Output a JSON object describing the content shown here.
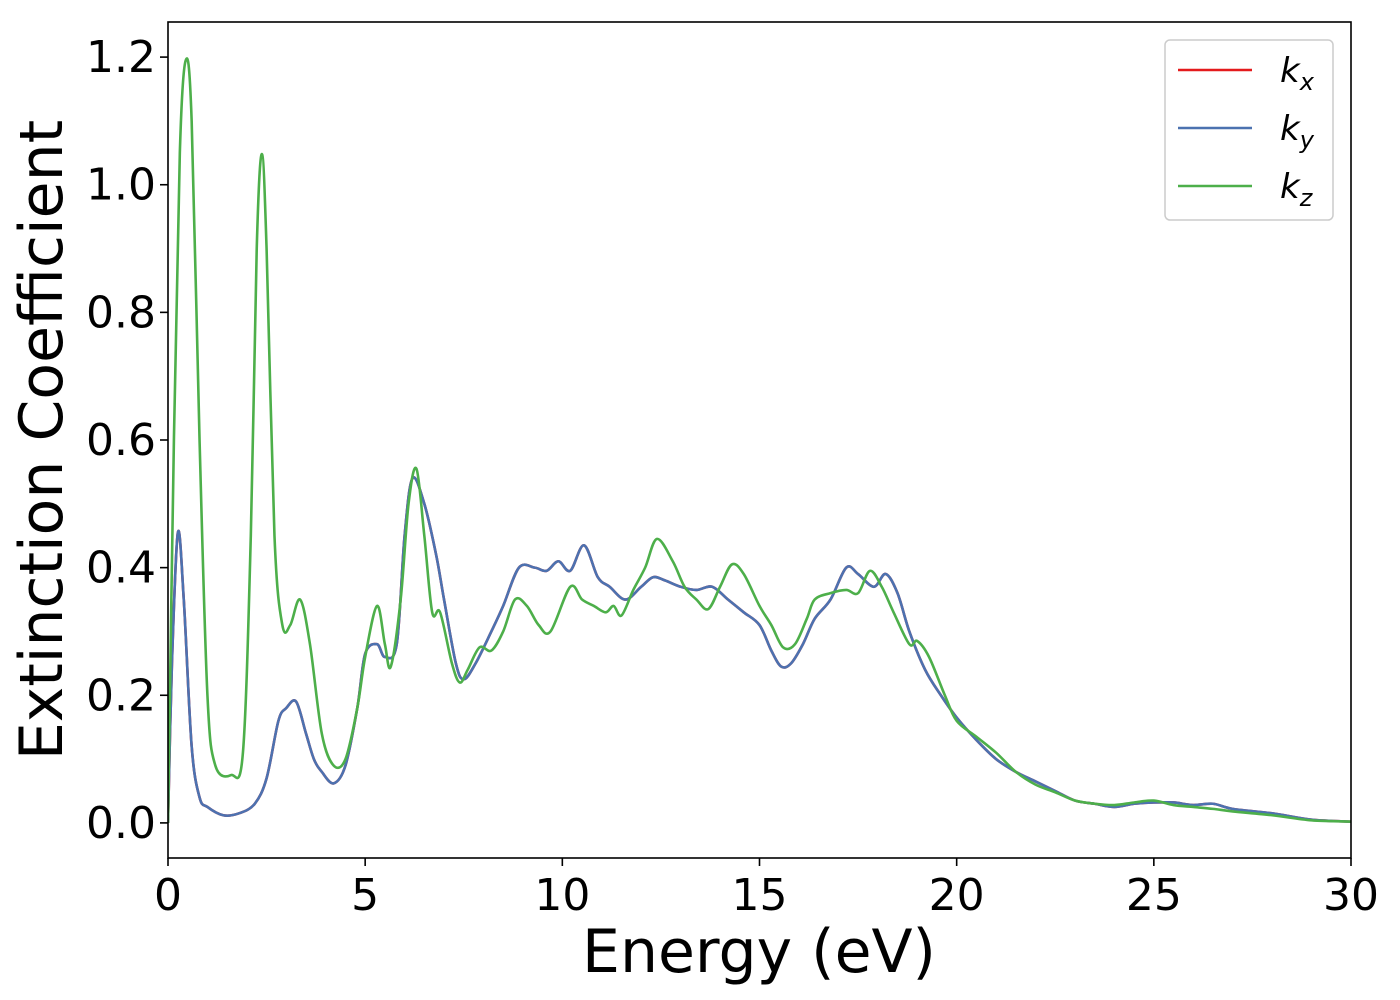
{
  "chart_data": {
    "type": "line",
    "xlabel": "Energy (eV)",
    "ylabel": "Extinction Coefficient",
    "xlim": [
      0,
      30
    ],
    "ylim": [
      -0.055,
      1.255
    ],
    "xticks": [
      0,
      5,
      10,
      15,
      20,
      25,
      30
    ],
    "xtick_labels": [
      "0",
      "5",
      "10",
      "15",
      "20",
      "25",
      "30"
    ],
    "yticks": [
      0.0,
      0.2,
      0.4,
      0.6,
      0.8,
      1.0,
      1.2
    ],
    "ytick_labels": [
      "0.0",
      "0.2",
      "0.4",
      "0.6",
      "0.8",
      "1.0",
      "1.2"
    ],
    "grid": false,
    "legend_position": "top-right",
    "series": [
      {
        "name": "k_x",
        "name_main": "k",
        "name_sub": "x",
        "color": "#e41a1c",
        "points": [
          [
            0,
            0.0
          ],
          [
            0.1,
            0.25
          ],
          [
            0.25,
            0.455
          ],
          [
            0.4,
            0.35
          ],
          [
            0.6,
            0.12
          ],
          [
            0.8,
            0.04
          ],
          [
            1.0,
            0.025
          ],
          [
            1.4,
            0.012
          ],
          [
            1.8,
            0.015
          ],
          [
            2.2,
            0.03
          ],
          [
            2.5,
            0.07
          ],
          [
            2.8,
            0.16
          ],
          [
            3.0,
            0.18
          ],
          [
            3.25,
            0.19
          ],
          [
            3.5,
            0.14
          ],
          [
            3.7,
            0.1
          ],
          [
            3.9,
            0.08
          ],
          [
            4.2,
            0.062
          ],
          [
            4.5,
            0.09
          ],
          [
            4.8,
            0.18
          ],
          [
            5.0,
            0.265
          ],
          [
            5.3,
            0.28
          ],
          [
            5.5,
            0.26
          ],
          [
            5.8,
            0.28
          ],
          [
            6.0,
            0.45
          ],
          [
            6.2,
            0.54
          ],
          [
            6.5,
            0.5
          ],
          [
            6.8,
            0.42
          ],
          [
            7.0,
            0.35
          ],
          [
            7.3,
            0.25
          ],
          [
            7.5,
            0.225
          ],
          [
            7.8,
            0.25
          ],
          [
            8.2,
            0.3
          ],
          [
            8.5,
            0.34
          ],
          [
            8.9,
            0.4
          ],
          [
            9.3,
            0.4
          ],
          [
            9.6,
            0.395
          ],
          [
            9.9,
            0.41
          ],
          [
            10.2,
            0.395
          ],
          [
            10.55,
            0.435
          ],
          [
            10.9,
            0.385
          ],
          [
            11.2,
            0.37
          ],
          [
            11.6,
            0.35
          ],
          [
            12.0,
            0.37
          ],
          [
            12.3,
            0.385
          ],
          [
            12.6,
            0.38
          ],
          [
            13.0,
            0.37
          ],
          [
            13.4,
            0.365
          ],
          [
            13.8,
            0.37
          ],
          [
            14.2,
            0.35
          ],
          [
            14.6,
            0.33
          ],
          [
            15.0,
            0.31
          ],
          [
            15.3,
            0.27
          ],
          [
            15.55,
            0.245
          ],
          [
            15.8,
            0.25
          ],
          [
            16.1,
            0.28
          ],
          [
            16.4,
            0.32
          ],
          [
            16.8,
            0.35
          ],
          [
            17.2,
            0.4
          ],
          [
            17.5,
            0.39
          ],
          [
            17.9,
            0.37
          ],
          [
            18.2,
            0.39
          ],
          [
            18.5,
            0.36
          ],
          [
            18.8,
            0.3
          ],
          [
            19.2,
            0.24
          ],
          [
            19.6,
            0.2
          ],
          [
            20.0,
            0.165
          ],
          [
            20.5,
            0.13
          ],
          [
            21.0,
            0.1
          ],
          [
            21.5,
            0.08
          ],
          [
            22.0,
            0.065
          ],
          [
            22.5,
            0.05
          ],
          [
            23.0,
            0.035
          ],
          [
            23.5,
            0.03
          ],
          [
            24.0,
            0.025
          ],
          [
            24.5,
            0.03
          ],
          [
            25.0,
            0.032
          ],
          [
            25.5,
            0.032
          ],
          [
            26.0,
            0.028
          ],
          [
            26.5,
            0.03
          ],
          [
            27.0,
            0.022
          ],
          [
            28.0,
            0.015
          ],
          [
            29.0,
            0.005
          ],
          [
            30.0,
            0.002
          ]
        ]
      },
      {
        "name": "k_y",
        "name_main": "k",
        "name_sub": "y",
        "color": "#4c72b0",
        "points": [
          [
            0,
            0.0
          ],
          [
            0.1,
            0.25
          ],
          [
            0.25,
            0.455
          ],
          [
            0.4,
            0.35
          ],
          [
            0.6,
            0.12
          ],
          [
            0.8,
            0.04
          ],
          [
            1.0,
            0.025
          ],
          [
            1.4,
            0.012
          ],
          [
            1.8,
            0.015
          ],
          [
            2.2,
            0.03
          ],
          [
            2.5,
            0.07
          ],
          [
            2.8,
            0.16
          ],
          [
            3.0,
            0.18
          ],
          [
            3.25,
            0.19
          ],
          [
            3.5,
            0.14
          ],
          [
            3.7,
            0.1
          ],
          [
            3.9,
            0.08
          ],
          [
            4.2,
            0.062
          ],
          [
            4.5,
            0.09
          ],
          [
            4.8,
            0.18
          ],
          [
            5.0,
            0.265
          ],
          [
            5.3,
            0.28
          ],
          [
            5.5,
            0.26
          ],
          [
            5.8,
            0.28
          ],
          [
            6.0,
            0.45
          ],
          [
            6.2,
            0.54
          ],
          [
            6.5,
            0.5
          ],
          [
            6.8,
            0.42
          ],
          [
            7.0,
            0.35
          ],
          [
            7.3,
            0.25
          ],
          [
            7.5,
            0.225
          ],
          [
            7.8,
            0.25
          ],
          [
            8.2,
            0.3
          ],
          [
            8.5,
            0.34
          ],
          [
            8.9,
            0.4
          ],
          [
            9.3,
            0.4
          ],
          [
            9.6,
            0.395
          ],
          [
            9.9,
            0.41
          ],
          [
            10.2,
            0.395
          ],
          [
            10.55,
            0.435
          ],
          [
            10.9,
            0.385
          ],
          [
            11.2,
            0.37
          ],
          [
            11.6,
            0.35
          ],
          [
            12.0,
            0.37
          ],
          [
            12.3,
            0.385
          ],
          [
            12.6,
            0.38
          ],
          [
            13.0,
            0.37
          ],
          [
            13.4,
            0.365
          ],
          [
            13.8,
            0.37
          ],
          [
            14.2,
            0.35
          ],
          [
            14.6,
            0.33
          ],
          [
            15.0,
            0.31
          ],
          [
            15.3,
            0.27
          ],
          [
            15.55,
            0.245
          ],
          [
            15.8,
            0.25
          ],
          [
            16.1,
            0.28
          ],
          [
            16.4,
            0.32
          ],
          [
            16.8,
            0.35
          ],
          [
            17.2,
            0.4
          ],
          [
            17.5,
            0.39
          ],
          [
            17.9,
            0.37
          ],
          [
            18.2,
            0.39
          ],
          [
            18.5,
            0.36
          ],
          [
            18.8,
            0.3
          ],
          [
            19.2,
            0.24
          ],
          [
            19.6,
            0.2
          ],
          [
            20.0,
            0.165
          ],
          [
            20.5,
            0.13
          ],
          [
            21.0,
            0.1
          ],
          [
            21.5,
            0.08
          ],
          [
            22.0,
            0.065
          ],
          [
            22.5,
            0.05
          ],
          [
            23.0,
            0.035
          ],
          [
            23.5,
            0.03
          ],
          [
            24.0,
            0.025
          ],
          [
            24.5,
            0.03
          ],
          [
            25.0,
            0.032
          ],
          [
            25.5,
            0.032
          ],
          [
            26.0,
            0.028
          ],
          [
            26.5,
            0.03
          ],
          [
            27.0,
            0.022
          ],
          [
            28.0,
            0.015
          ],
          [
            29.0,
            0.005
          ],
          [
            30.0,
            0.002
          ]
        ]
      },
      {
        "name": "k_z",
        "name_main": "k",
        "name_sub": "z",
        "color": "#4daf4a",
        "points": [
          [
            0,
            0.0
          ],
          [
            0.15,
            0.6
          ],
          [
            0.3,
            1.05
          ],
          [
            0.45,
            1.195
          ],
          [
            0.6,
            1.1
          ],
          [
            0.8,
            0.6
          ],
          [
            1.0,
            0.2
          ],
          [
            1.2,
            0.09
          ],
          [
            1.6,
            0.075
          ],
          [
            1.9,
            0.11
          ],
          [
            2.1,
            0.45
          ],
          [
            2.25,
            0.9
          ],
          [
            2.38,
            1.048
          ],
          [
            2.5,
            0.9
          ],
          [
            2.7,
            0.45
          ],
          [
            2.9,
            0.31
          ],
          [
            3.1,
            0.31
          ],
          [
            3.35,
            0.35
          ],
          [
            3.6,
            0.28
          ],
          [
            3.9,
            0.14
          ],
          [
            4.2,
            0.09
          ],
          [
            4.5,
            0.1
          ],
          [
            4.8,
            0.18
          ],
          [
            5.0,
            0.26
          ],
          [
            5.3,
            0.34
          ],
          [
            5.5,
            0.28
          ],
          [
            5.65,
            0.245
          ],
          [
            5.9,
            0.35
          ],
          [
            6.1,
            0.5
          ],
          [
            6.3,
            0.555
          ],
          [
            6.5,
            0.45
          ],
          [
            6.7,
            0.33
          ],
          [
            6.9,
            0.33
          ],
          [
            7.2,
            0.25
          ],
          [
            7.4,
            0.22
          ],
          [
            7.6,
            0.24
          ],
          [
            7.9,
            0.275
          ],
          [
            8.2,
            0.27
          ],
          [
            8.5,
            0.3
          ],
          [
            8.8,
            0.35
          ],
          [
            9.1,
            0.34
          ],
          [
            9.4,
            0.31
          ],
          [
            9.7,
            0.3
          ],
          [
            10.2,
            0.37
          ],
          [
            10.5,
            0.35
          ],
          [
            10.8,
            0.34
          ],
          [
            11.1,
            0.33
          ],
          [
            11.3,
            0.34
          ],
          [
            11.5,
            0.325
          ],
          [
            11.8,
            0.365
          ],
          [
            12.1,
            0.4
          ],
          [
            12.4,
            0.445
          ],
          [
            12.8,
            0.41
          ],
          [
            13.1,
            0.37
          ],
          [
            13.4,
            0.35
          ],
          [
            13.7,
            0.335
          ],
          [
            14.0,
            0.37
          ],
          [
            14.3,
            0.405
          ],
          [
            14.6,
            0.39
          ],
          [
            15.0,
            0.34
          ],
          [
            15.3,
            0.31
          ],
          [
            15.6,
            0.275
          ],
          [
            15.9,
            0.28
          ],
          [
            16.2,
            0.32
          ],
          [
            16.4,
            0.35
          ],
          [
            16.8,
            0.36
          ],
          [
            17.2,
            0.365
          ],
          [
            17.5,
            0.36
          ],
          [
            17.8,
            0.395
          ],
          [
            18.1,
            0.37
          ],
          [
            18.4,
            0.33
          ],
          [
            18.8,
            0.28
          ],
          [
            19.0,
            0.285
          ],
          [
            19.3,
            0.26
          ],
          [
            19.7,
            0.2
          ],
          [
            20.0,
            0.16
          ],
          [
            20.5,
            0.135
          ],
          [
            21.0,
            0.11
          ],
          [
            21.5,
            0.08
          ],
          [
            22.0,
            0.06
          ],
          [
            22.5,
            0.048
          ],
          [
            23.0,
            0.035
          ],
          [
            23.5,
            0.03
          ],
          [
            24.0,
            0.028
          ],
          [
            24.5,
            0.032
          ],
          [
            25.0,
            0.035
          ],
          [
            25.5,
            0.028
          ],
          [
            26.0,
            0.025
          ],
          [
            26.5,
            0.022
          ],
          [
            27.0,
            0.018
          ],
          [
            28.0,
            0.012
          ],
          [
            29.0,
            0.004
          ],
          [
            30.0,
            0.002
          ]
        ]
      }
    ]
  }
}
